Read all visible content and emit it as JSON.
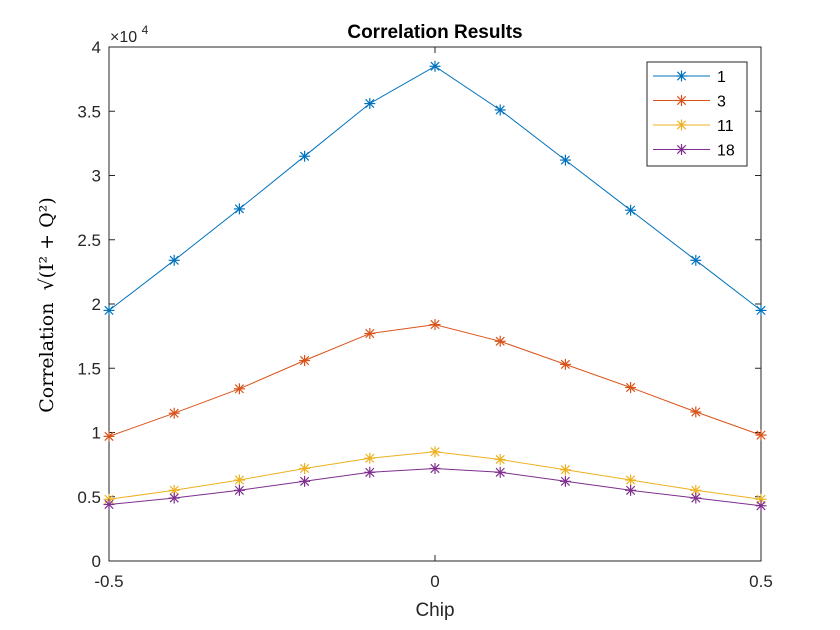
{
  "chart_data": {
    "type": "line",
    "title": "Correlation Results",
    "xlabel": "Chip",
    "ylabel_prefix": "Correlation",
    "ylabel_formula": "√(I² + Q²)",
    "y_exponent_base": "×10",
    "y_exponent_power": "4",
    "xlim": [
      -0.5,
      0.5
    ],
    "ylim": [
      0,
      40000
    ],
    "x_ticks": [
      -0.5,
      0,
      0.5
    ],
    "x_tick_labels": [
      "-0.5",
      "0",
      "0.5"
    ],
    "y_ticks": [
      0,
      5000,
      10000,
      15000,
      20000,
      25000,
      30000,
      35000,
      40000
    ],
    "y_tick_labels": [
      "0",
      "0.5",
      "1",
      "1.5",
      "2",
      "2.5",
      "3",
      "3.5",
      "4"
    ],
    "grid": false,
    "legend_position": "top-right",
    "marker": "asterisk",
    "x": [
      -0.5,
      -0.4,
      -0.3,
      -0.2,
      -0.1,
      0,
      0.1,
      0.2,
      0.3,
      0.4,
      0.5
    ],
    "series": [
      {
        "name": "1",
        "color": "#0072BD",
        "values": [
          19500,
          23400,
          27400,
          31500,
          35600,
          38500,
          35100,
          31200,
          27300,
          23400,
          19500
        ]
      },
      {
        "name": "3",
        "color": "#D95319",
        "values": [
          9700,
          11500,
          13400,
          15600,
          17700,
          18400,
          17100,
          15300,
          13500,
          11600,
          9800
        ]
      },
      {
        "name": "11",
        "color": "#EDB120",
        "values": [
          4800,
          5500,
          6300,
          7200,
          8000,
          8500,
          7900,
          7100,
          6300,
          5500,
          4800
        ]
      },
      {
        "name": "18",
        "color": "#7E2F8E",
        "values": [
          4400,
          4900,
          5500,
          6200,
          6900,
          7200,
          6900,
          6200,
          5500,
          4900,
          4300
        ]
      }
    ]
  }
}
